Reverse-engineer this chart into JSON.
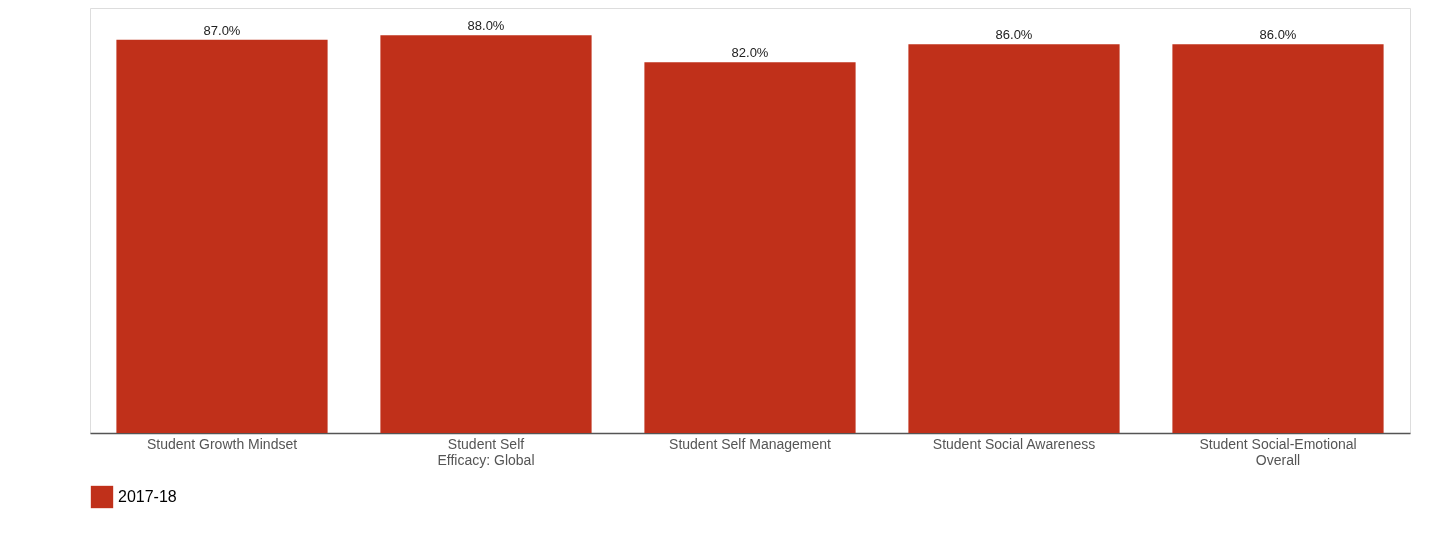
{
  "chart_data": {
    "type": "bar",
    "categories": [
      "Student Growth Mindset",
      "Student Self Efficacy: Global",
      "Student Self Management",
      "Student Social Awareness",
      "Student Social-Emotional Overall"
    ],
    "series": [
      {
        "name": "2017-18",
        "color": "#c0301a",
        "values": [
          87,
          88,
          82,
          86,
          86
        ],
        "value_labels": [
          "87.0%",
          "88.0%",
          "82.0%",
          "86.0%",
          "86.0%"
        ]
      }
    ],
    "ylim": [
      0,
      94
    ],
    "tick_labels": "x",
    "legend": "bottom",
    "grid": false
  }
}
